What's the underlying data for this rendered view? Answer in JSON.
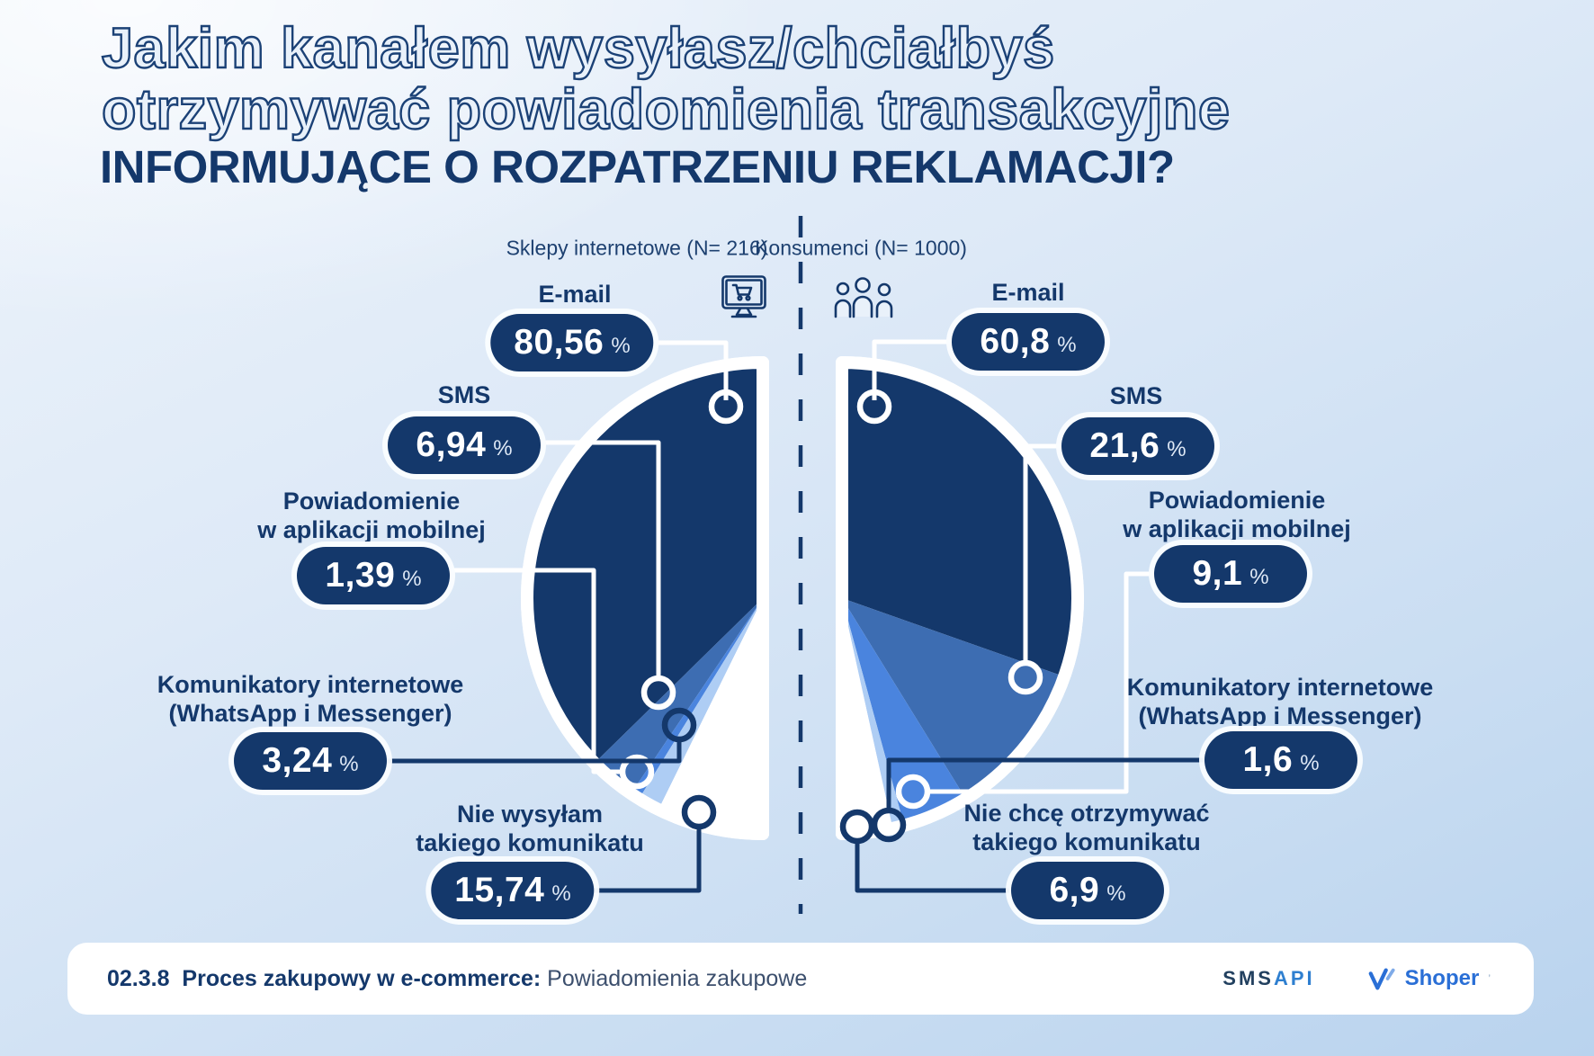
{
  "title": {
    "line1": "Jakim kanałem wysyłasz/chciałbyś",
    "line2": "otrzymywać powiadomienia transakcyjne",
    "line3": "INFORMUJĄCE O ROZPATRZENIU REKLAMACJI?"
  },
  "chart_data": [
    {
      "type": "pie",
      "variant": "half-pie-facing-left",
      "title": "Sklepy internetowe (N= 216)",
      "sample_n": 216,
      "unit": "%",
      "legend_position": "callouts-around-pie",
      "slices": [
        {
          "label": "E-mail",
          "value": 80.56,
          "value_display": "80,56",
          "color": "#14386B"
        },
        {
          "label": "SMS",
          "value": 6.94,
          "value_display": "6,94",
          "color": "#3D6DB2"
        },
        {
          "label": "Powiadomienie\nw aplikacji mobilnej",
          "value": 1.39,
          "value_display": "1,39",
          "color": "#4A84DE"
        },
        {
          "label": "Komunikatory internetowe\n(WhatsApp i Messenger)",
          "value": 3.24,
          "value_display": "3,24",
          "color": "#AECDF4"
        },
        {
          "label": "Nie wysyłam\ntakiego komunikatu",
          "value": 15.74,
          "value_display": "15,74",
          "color": "#FFFFFF"
        }
      ]
    },
    {
      "type": "pie",
      "variant": "half-pie-facing-right",
      "title": "Konsumenci (N= 1000)",
      "sample_n": 1000,
      "unit": "%",
      "legend_position": "callouts-around-pie",
      "slices": [
        {
          "label": "E-mail",
          "value": 60.8,
          "value_display": "60,8",
          "color": "#14386B"
        },
        {
          "label": "SMS",
          "value": 21.6,
          "value_display": "21,6",
          "color": "#3D6DB2"
        },
        {
          "label": "Powiadomienie\nw aplikacji mobilnej",
          "value": 9.1,
          "value_display": "9,1",
          "color": "#4A84DE"
        },
        {
          "label": "Komunikatory internetowe\n(WhatsApp i Messenger)",
          "value": 1.6,
          "value_display": "1,6",
          "color": "#AECDF4"
        },
        {
          "label": "Nie chcę otrzymywać\ntakiego komunikatu",
          "value": 6.9,
          "value_display": "6,9",
          "color": "#FFFFFF"
        }
      ]
    }
  ],
  "footer": {
    "index": "02.3.8",
    "series_bold": "Proces zakupowy w e-commerce:",
    "series_regular": "Powiadomienia zakupowe",
    "logo_smsapi_part1": "SMS",
    "logo_smsapi_part2": "API",
    "logo_shoper": "Shoper"
  },
  "colors": {
    "navy": "#14386B",
    "medium_blue": "#3D6DB2",
    "bright_blue": "#4A84DE",
    "pale_blue": "#AECDF4",
    "white": "#FFFFFF",
    "background_light": "#E9F1FA"
  }
}
